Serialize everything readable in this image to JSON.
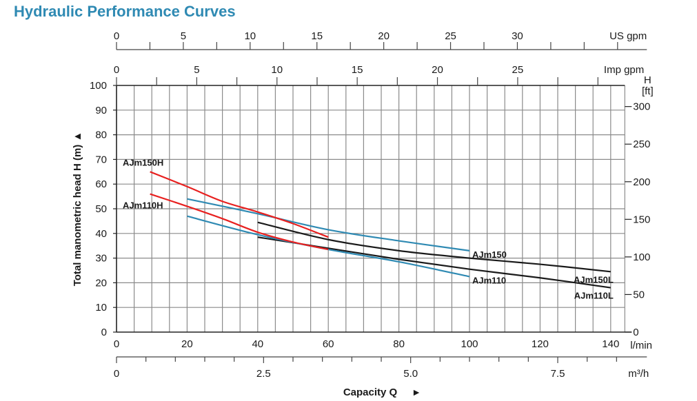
{
  "page": {
    "title": "Hydraulic Performance Curves"
  },
  "chart_data": {
    "type": "line",
    "title": "Hydraulic Performance Curves",
    "xlabel": "Capacity Q",
    "ylabel": "Total manometric head H (m)",
    "xlabel_arrow": "►",
    "ylabel_arrow": "▲",
    "x_unit": "l/min",
    "xlim": [
      0,
      144
    ],
    "ylim": [
      0,
      100
    ],
    "grid": true,
    "x_ticks": [
      0,
      20,
      40,
      60,
      80,
      100,
      120,
      140
    ],
    "x_tick_labels": [
      "0",
      "20",
      "40",
      "60",
      "80",
      "100",
      "120",
      "140"
    ],
    "y_ticks": [
      0,
      10,
      20,
      30,
      40,
      50,
      60,
      70,
      80,
      90,
      100
    ],
    "y_tick_labels": [
      "0",
      "10",
      "20",
      "30",
      "40",
      "50",
      "60",
      "70",
      "80",
      "90",
      "100"
    ],
    "secondary_axes": {
      "us_gpm": {
        "label": "US gpm",
        "ticks": [
          0,
          5,
          10,
          15,
          20,
          25,
          30
        ],
        "tick_labels": [
          "0",
          "5",
          "10",
          "15",
          "20",
          "25",
          "30"
        ],
        "minor_step": 2.5,
        "max": 37.5
      },
      "imp_gpm": {
        "label": "Imp gpm",
        "ticks": [
          0,
          5,
          10,
          15,
          20,
          25
        ],
        "tick_labels": [
          "0",
          "5",
          "10",
          "15",
          "20",
          "25"
        ],
        "minor_step": 2.5,
        "max": 30
      },
      "m3h": {
        "label": "m³/h",
        "ticks": [
          0,
          2.5,
          5.0,
          7.5
        ],
        "tick_labels": [
          "0",
          "2.5",
          "5.0",
          "7.5"
        ],
        "minor_step": 0.5,
        "max": 8.5
      },
      "h_ft": {
        "label_top": "H",
        "label_unit": "[ft]",
        "ticks": [
          0,
          50,
          100,
          150,
          200,
          250,
          300
        ],
        "tick_labels": [
          "0",
          "50",
          "100",
          "150",
          "200",
          "250",
          "300"
        ]
      }
    },
    "series": [
      {
        "name": "AJm150H",
        "color": "#e8201f",
        "label_pos": "left",
        "x": [
          9.5,
          20,
          30,
          40,
          50,
          60
        ],
        "y": [
          65,
          59,
          53,
          48.7,
          44,
          38.5
        ]
      },
      {
        "name": "AJm110H",
        "color": "#e8201f",
        "label_pos": "left",
        "x": [
          9.5,
          20,
          30,
          40,
          50,
          60
        ],
        "y": [
          56,
          51,
          46,
          40.5,
          36.5,
          33.5
        ]
      },
      {
        "name": "AJm150",
        "color": "#2f8ab3",
        "label_pos": "right",
        "x": [
          20,
          40,
          60,
          80,
          100
        ],
        "y": [
          54,
          48,
          41.5,
          37,
          33
        ]
      },
      {
        "name": "AJm110",
        "color": "#2f8ab3",
        "label_pos": "right",
        "x": [
          20,
          40,
          60,
          80,
          100
        ],
        "y": [
          47,
          39.5,
          33.5,
          28.5,
          22.5
        ]
      },
      {
        "name": "AJm150L",
        "color": "#1a1a1a",
        "label_pos": "right-below",
        "x": [
          40,
          60,
          80,
          100,
          120,
          140
        ],
        "y": [
          44.5,
          37.5,
          33,
          30,
          27.5,
          24.5
        ]
      },
      {
        "name": "AJm110L",
        "color": "#1a1a1a",
        "label_pos": "right-below",
        "x": [
          40,
          60,
          80,
          100,
          120,
          140
        ],
        "y": [
          38.5,
          34,
          29.5,
          25.5,
          22,
          18
        ]
      }
    ]
  }
}
